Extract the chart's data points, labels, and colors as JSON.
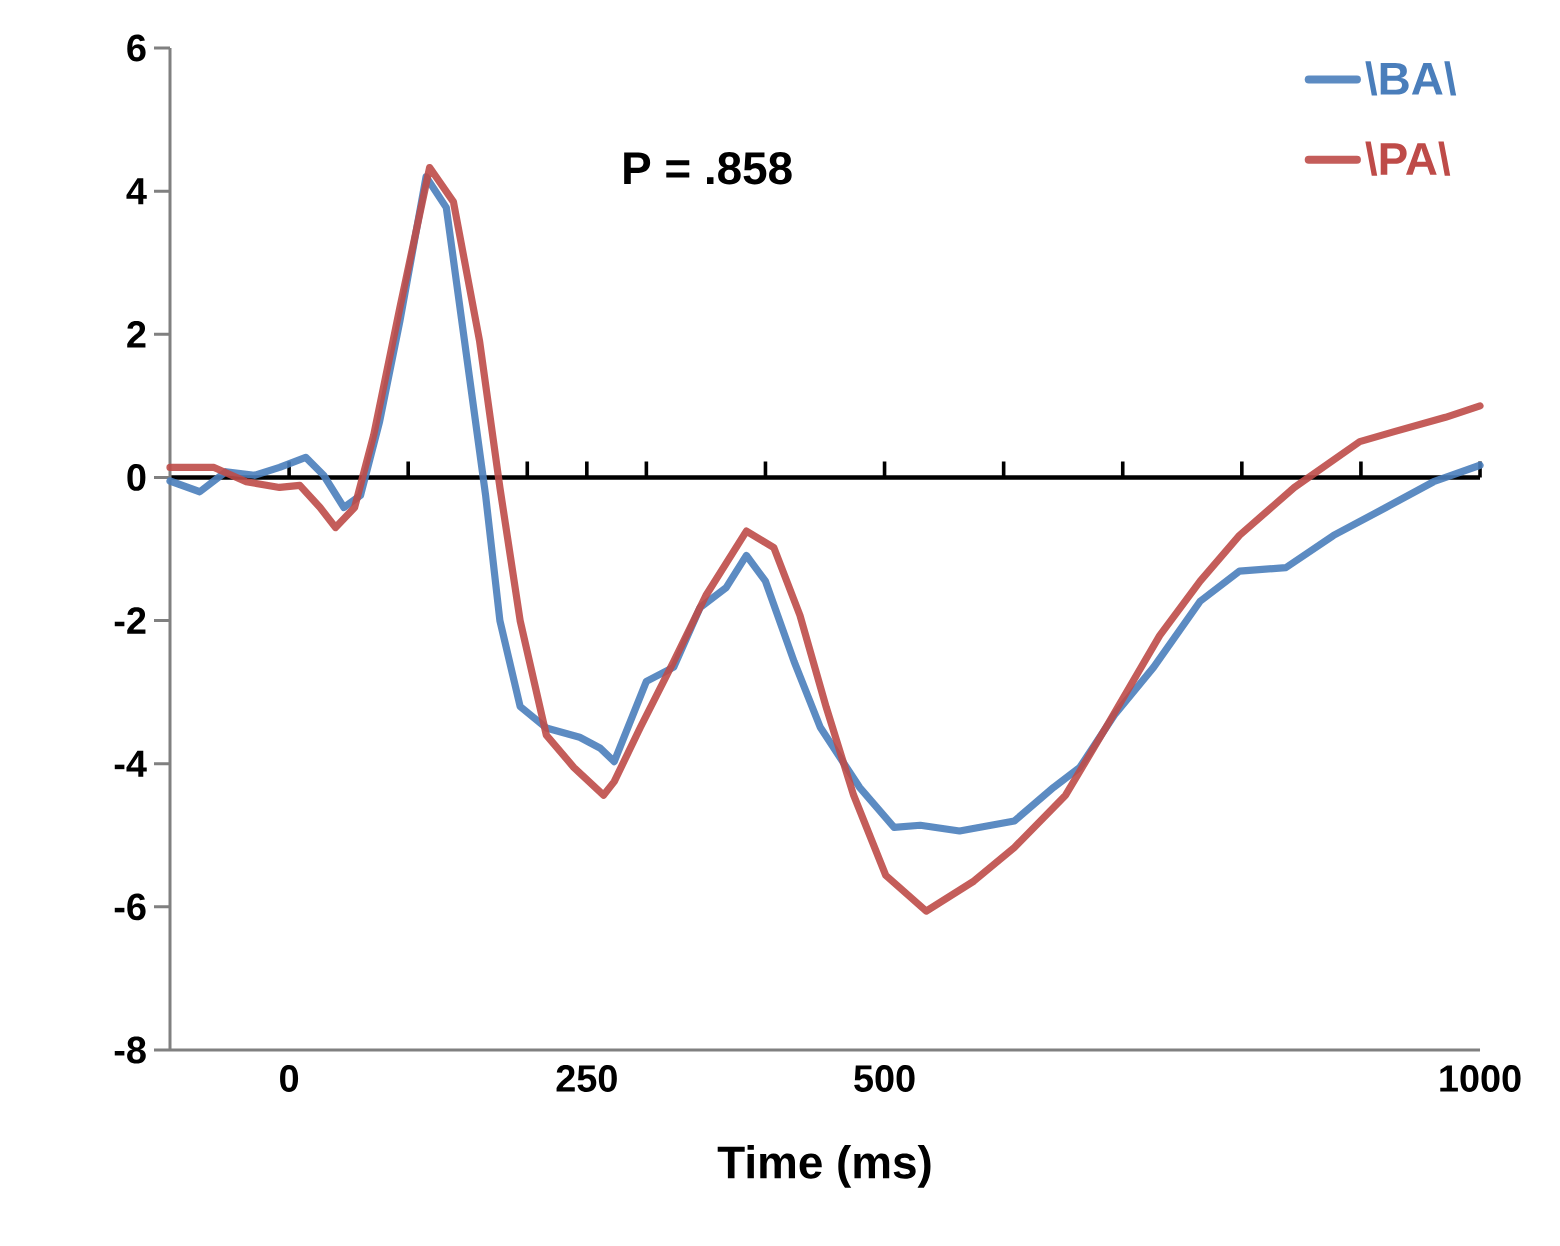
{
  "chart_data": {
    "type": "line",
    "xlabel": "Time (ms)",
    "annotations": [
      "P = .858"
    ],
    "xlim": [
      -100,
      1000
    ],
    "ylim": [
      -8,
      6
    ],
    "xticks": [
      0,
      {
        "value": 100,
        "label": null
      },
      {
        "value": 200,
        "label": null
      },
      250,
      {
        "value": 300,
        "label": null
      },
      {
        "value": 400,
        "label": null
      },
      500,
      {
        "value": 600,
        "label": null
      },
      {
        "value": 700,
        "label": null
      },
      {
        "value": 800,
        "label": null
      },
      {
        "value": 900,
        "label": null
      },
      1000
    ],
    "yticks": [
      -8,
      -6,
      -4,
      -2,
      0,
      2,
      4,
      6
    ],
    "legend": "top right",
    "marker": "none",
    "line_style": "solid",
    "series": [
      {
        "name": "\\BA\\",
        "color": "#4a7ebb",
        "x": [
          -100,
          -75,
          -53,
          -29,
          -8,
          14,
          29,
          46,
          60,
          76,
          93,
          115,
          132,
          149,
          165,
          177,
          194,
          216,
          244,
          261,
          273,
          300,
          323,
          345,
          367,
          384,
          400,
          424,
          446,
          479,
          508,
          530,
          563,
          609,
          642,
          664,
          693,
          726,
          765,
          798,
          837,
          877,
          921,
          961,
          1000
        ],
        "values": [
          -0.05,
          -0.2,
          0.08,
          0.03,
          0.14,
          0.28,
          0.03,
          -0.42,
          -0.25,
          0.78,
          2.18,
          4.2,
          3.77,
          1.7,
          -0.25,
          -2.0,
          -3.2,
          -3.5,
          -3.63,
          -3.78,
          -3.97,
          -2.85,
          -2.65,
          -1.82,
          -1.54,
          -1.09,
          -1.45,
          -2.57,
          -3.49,
          -4.33,
          -4.89,
          -4.86,
          -4.94,
          -4.8,
          -4.33,
          -4.05,
          -3.32,
          -2.65,
          -1.73,
          -1.31,
          -1.26,
          -0.81,
          -0.42,
          -0.06,
          0.17
        ]
      },
      {
        "name": "\\PA\\",
        "color": "#be4b48",
        "x": [
          -100,
          -63,
          -36,
          -8,
          9,
          26,
          39,
          55,
          71,
          93,
          118,
          138,
          160,
          177,
          194,
          216,
          239,
          264,
          273,
          295,
          323,
          350,
          384,
          407,
          429,
          451,
          474,
          501,
          535,
          575,
          609,
          652,
          686,
          731,
          765,
          798,
          844,
          899,
          928,
          971,
          1000
        ],
        "values": [
          0.14,
          0.14,
          -0.06,
          -0.14,
          -0.11,
          -0.42,
          -0.7,
          -0.42,
          0.59,
          2.37,
          4.33,
          3.85,
          1.9,
          -0.14,
          -2.0,
          -3.6,
          -4.05,
          -4.44,
          -4.25,
          -3.49,
          -2.57,
          -1.65,
          -0.75,
          -0.98,
          -1.93,
          -3.21,
          -4.44,
          -5.56,
          -6.06,
          -5.64,
          -5.17,
          -4.44,
          -3.49,
          -2.21,
          -1.45,
          -0.81,
          -0.14,
          0.5,
          0.64,
          0.84,
          1.0
        ]
      }
    ]
  }
}
